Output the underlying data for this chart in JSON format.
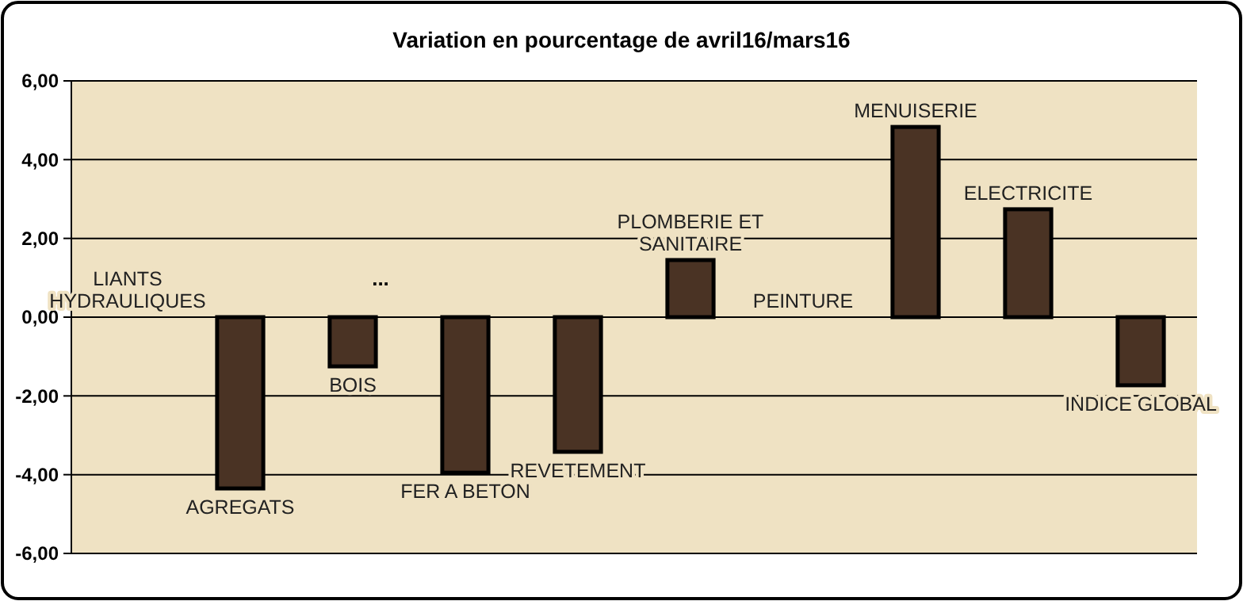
{
  "chart_data": {
    "type": "bar",
    "title": "Variation en pourcentage de avril16/mars16",
    "categories": [
      "LIANTS HYDRAULIQUES",
      "AGREGATS",
      "BOIS",
      "FER A BETON",
      "REVETEMENT",
      "PLOMBERIE  ET SANITAIRE",
      "PEINTURE",
      "MENUISERIE",
      "ELECTRICITE",
      "INDICE GLOBAL"
    ],
    "values": [
      0,
      -4.35,
      -1.25,
      -3.95,
      -3.42,
      1.45,
      0,
      4.83,
      2.74,
      -1.73
    ],
    "color": "#4a3324",
    "ylim": [
      -6,
      6
    ],
    "yticks": [
      {
        "value": 6,
        "label": "6,00"
      },
      {
        "value": 4,
        "label": "4,00"
      },
      {
        "value": 2,
        "label": "2,00"
      },
      {
        "value": 0,
        "label": "0,00"
      },
      {
        "value": -2,
        "label": "-2,00"
      },
      {
        "value": -4,
        "label": "-4,00"
      },
      {
        "value": -6,
        "label": "-6,00"
      }
    ],
    "grid": "y",
    "tick_labels": "y",
    "annotations": [
      "..."
    ]
  }
}
